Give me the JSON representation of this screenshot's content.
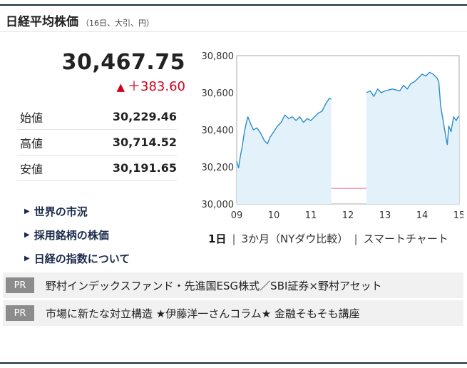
{
  "header": {
    "title": "日経平均株価",
    "subtitle": "（16日、大引、円）"
  },
  "quote": {
    "price": "30,467.75",
    "change_arrow": "▲",
    "change": "＋383.60"
  },
  "ohl": [
    {
      "label": "始値",
      "value": "30,229.46"
    },
    {
      "label": "高値",
      "value": "30,714.52"
    },
    {
      "label": "安値",
      "value": "30,191.65"
    }
  ],
  "links": [
    {
      "label": "世界の市況"
    },
    {
      "label": "採用銘柄の株価"
    },
    {
      "label": "日経の指数について"
    }
  ],
  "chart_data": {
    "type": "line",
    "y_ticks": [
      "30,800",
      "30,600",
      "30,400",
      "30,200",
      "30,000"
    ],
    "x_ticks": [
      "09",
      "10",
      "11",
      "12",
      "13",
      "14",
      "15"
    ],
    "ylim": [
      30000,
      30800
    ],
    "xlim": [
      9,
      15
    ],
    "previous_close": 30084.15,
    "session_am": [
      [
        9.0,
        30230
      ],
      [
        9.05,
        30195
      ],
      [
        9.1,
        30260
      ],
      [
        9.15,
        30310
      ],
      [
        9.2,
        30380
      ],
      [
        9.25,
        30430
      ],
      [
        9.3,
        30470
      ],
      [
        9.38,
        30430
      ],
      [
        9.45,
        30400
      ],
      [
        9.55,
        30410
      ],
      [
        9.65,
        30380
      ],
      [
        9.75,
        30340
      ],
      [
        9.83,
        30325
      ],
      [
        9.9,
        30360
      ],
      [
        10.0,
        30390
      ],
      [
        10.1,
        30420
      ],
      [
        10.2,
        30440
      ],
      [
        10.3,
        30480
      ],
      [
        10.4,
        30460
      ],
      [
        10.5,
        30470
      ],
      [
        10.6,
        30450
      ],
      [
        10.7,
        30470
      ],
      [
        10.8,
        30440
      ],
      [
        10.9,
        30460
      ],
      [
        11.0,
        30450
      ],
      [
        11.1,
        30470
      ],
      [
        11.2,
        30490
      ],
      [
        11.3,
        30500
      ],
      [
        11.4,
        30540
      ],
      [
        11.5,
        30570
      ],
      [
        11.55,
        30565
      ]
    ],
    "session_pm": [
      [
        12.5,
        30600
      ],
      [
        12.6,
        30610
      ],
      [
        12.7,
        30580
      ],
      [
        12.8,
        30620
      ],
      [
        12.9,
        30600
      ],
      [
        13.0,
        30610
      ],
      [
        13.2,
        30620
      ],
      [
        13.4,
        30610
      ],
      [
        13.5,
        30640
      ],
      [
        13.6,
        30620
      ],
      [
        13.7,
        30650
      ],
      [
        13.8,
        30660
      ],
      [
        13.9,
        30680
      ],
      [
        14.0,
        30700
      ],
      [
        14.1,
        30690
      ],
      [
        14.2,
        30710
      ],
      [
        14.3,
        30700
      ],
      [
        14.35,
        30690
      ],
      [
        14.4,
        30680
      ],
      [
        14.45,
        30660
      ],
      [
        14.5,
        30530
      ],
      [
        14.55,
        30470
      ],
      [
        14.6,
        30410
      ],
      [
        14.65,
        30350
      ],
      [
        14.68,
        30320
      ],
      [
        14.72,
        30420
      ],
      [
        14.78,
        30390
      ],
      [
        14.85,
        30470
      ],
      [
        14.92,
        30450
      ],
      [
        14.97,
        30470
      ],
      [
        15.0,
        30467
      ]
    ],
    "colors": {
      "line": "#2a8ec8",
      "fill": "#e3f1fb",
      "baseline": "#e86a8a",
      "axis": "#aaaaaa"
    }
  },
  "periods": [
    {
      "label": "1日"
    },
    {
      "label": "3か月（NYダウ比較）"
    },
    {
      "label": "スマートチャート"
    }
  ],
  "pr": [
    {
      "badge": "PR",
      "text": "野村インデックスファンド・先進国ESG株式／SBI証券×野村アセット"
    },
    {
      "badge": "PR",
      "text": "市場に新たな対立構造 ★伊藤洋一さんコラム★ 金融そもそも講座"
    }
  ]
}
